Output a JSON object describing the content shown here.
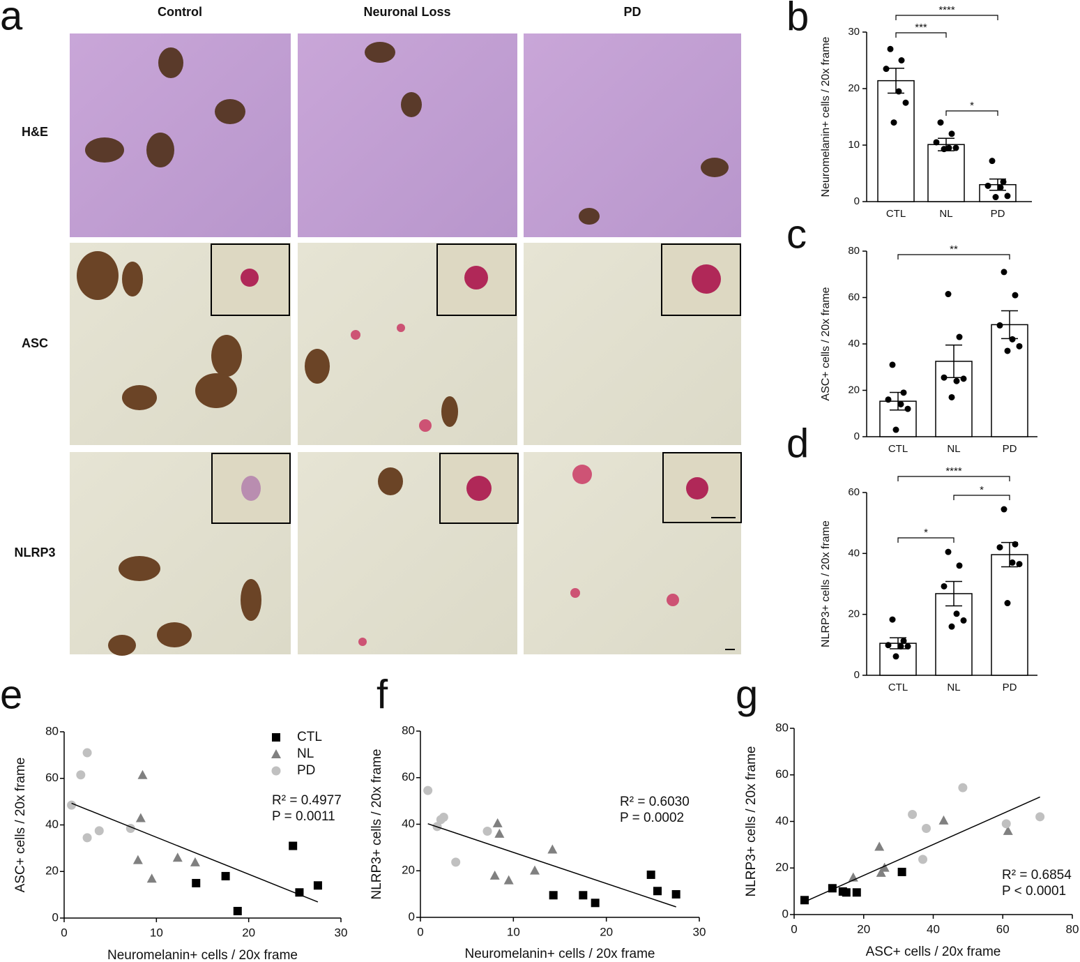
{
  "panel_a": {
    "label": "a",
    "columns": [
      "Control",
      "Neuronal Loss",
      "PD"
    ],
    "rows": [
      "H&E",
      "ASC",
      "NLRP3"
    ]
  },
  "chart_data": [
    {
      "type": "bar",
      "label": "b",
      "ylabel": "Neuromelanin+ cells / 20x frame",
      "categories": [
        "CTL",
        "NL",
        "PD"
      ],
      "values": [
        21.4,
        10.1,
        3.0
      ],
      "errors": [
        2.2,
        1.1,
        1.0
      ],
      "points": [
        [
          27,
          25,
          23.5,
          19.5,
          17.5,
          14
        ],
        [
          14,
          12,
          10.5,
          9.5,
          9.5,
          9.3
        ],
        [
          7.2,
          3.5,
          2.8,
          2.5,
          1.0,
          0.8
        ]
      ],
      "brackets": [
        {
          "from": 0,
          "to": 2,
          "label": "****"
        },
        {
          "from": 0,
          "to": 1,
          "label": "***"
        },
        {
          "from": 1,
          "to": 2,
          "label": "*"
        }
      ],
      "ylim": [
        0,
        30
      ],
      "yticks": [
        0,
        10,
        20,
        30
      ]
    },
    {
      "type": "bar",
      "label": "c",
      "ylabel": "ASC+ cells / 20x frame",
      "categories": [
        "CTL",
        "NL",
        "PD"
      ],
      "values": [
        15.3,
        32.5,
        48.3
      ],
      "errors": [
        3.8,
        7.0,
        6.0
      ],
      "points": [
        [
          31,
          19,
          16,
          14,
          12,
          3
        ],
        [
          61.5,
          43,
          25.5,
          24,
          25,
          17
        ],
        [
          71,
          61,
          48,
          42,
          39,
          37
        ]
      ],
      "brackets": [
        {
          "from": 0,
          "to": 2,
          "label": "**"
        }
      ],
      "ylim": [
        0,
        80
      ],
      "yticks": [
        0,
        20,
        40,
        60,
        80
      ]
    },
    {
      "type": "bar",
      "label": "d",
      "ylabel": "NLRP3+ cells / 20x frame",
      "categories": [
        "CTL",
        "NL",
        "PD"
      ],
      "values": [
        10.5,
        26.8,
        39.6
      ],
      "errors": [
        1.8,
        4.0,
        4.0
      ],
      "points": [
        [
          18.3,
          11.3,
          9.9,
          9.5,
          9.5,
          6.2
        ],
        [
          40.5,
          36,
          29.2,
          20.2,
          18,
          16
        ],
        [
          54.5,
          43,
          42,
          37,
          36.5,
          23.7
        ]
      ],
      "brackets": [
        {
          "from": 0,
          "to": 2,
          "label": "****"
        },
        {
          "from": 1,
          "to": 2,
          "label": "*"
        },
        {
          "from": 0,
          "to": 1,
          "label": "*"
        }
      ],
      "ylim": [
        0,
        60
      ],
      "yticks": [
        0,
        20,
        40,
        60
      ]
    },
    {
      "type": "scatter",
      "label": "e",
      "xlabel": "Neuromelanin+ cells / 20x frame",
      "ylabel": "ASC+ cells / 20x frame",
      "series": [
        {
          "name": "CTL",
          "color": "#000000",
          "marker": "square",
          "x": [
            14.3,
            17.5,
            18.8,
            24.8,
            25.5,
            27.5
          ],
          "y": [
            15,
            18,
            3,
            31,
            11,
            14
          ]
        },
        {
          "name": "NL",
          "color": "#808080",
          "marker": "triangle",
          "x": [
            8.5,
            8.3,
            8,
            9.5,
            12.3,
            14.2
          ],
          "y": [
            61.5,
            43,
            25,
            17,
            26,
            24
          ]
        },
        {
          "name": "PD",
          "color": "#c0c0c0",
          "marker": "circle",
          "x": [
            2.5,
            1.8,
            0.8,
            2.5,
            3.8,
            7.2
          ],
          "y": [
            71,
            61.5,
            48.5,
            34.5,
            37.5,
            38.5
          ]
        }
      ],
      "regression": {
        "x": [
          0.8,
          27.5
        ],
        "y": [
          49.3,
          6.9
        ]
      },
      "annotations": [
        "R² = 0.4977",
        "P = 0.0011"
      ],
      "legend": "top-right",
      "xlim": [
        0,
        30
      ],
      "xticks": [
        0,
        10,
        20,
        30
      ],
      "ylim": [
        0,
        80
      ],
      "yticks": [
        0,
        20,
        40,
        60,
        80
      ]
    },
    {
      "type": "scatter",
      "label": "f",
      "xlabel": "Neuromelanin+ cells / 20x frame",
      "ylabel": "NLRP3+ cells / 20x frame",
      "series": [
        {
          "name": "CTL",
          "color": "#000000",
          "marker": "square",
          "x": [
            14.3,
            17.5,
            18.8,
            24.8,
            25.5,
            27.5
          ],
          "y": [
            9.5,
            9.5,
            6.2,
            18.3,
            11.3,
            9.9
          ]
        },
        {
          "name": "NL",
          "color": "#808080",
          "marker": "triangle",
          "x": [
            8.3,
            8.5,
            14.2,
            12.3,
            8,
            9.5
          ],
          "y": [
            40.5,
            36,
            29.2,
            20.2,
            18,
            16
          ]
        },
        {
          "name": "PD",
          "color": "#c0c0c0",
          "marker": "circle",
          "x": [
            0.8,
            2.5,
            2.2,
            1.8,
            7.2,
            3.8
          ],
          "y": [
            54.5,
            43,
            42,
            39,
            37,
            23.7
          ]
        }
      ],
      "regression": {
        "x": [
          0.8,
          27.5
        ],
        "y": [
          40.2,
          4.5
        ]
      },
      "annotations": [
        "R² = 0.6030",
        "P = 0.0002"
      ],
      "xlim": [
        0,
        30
      ],
      "xticks": [
        0,
        10,
        20,
        30
      ],
      "ylim": [
        0,
        80
      ],
      "yticks": [
        0,
        20,
        40,
        60,
        80
      ]
    },
    {
      "type": "scatter",
      "label": "g",
      "xlabel": "ASC+ cells / 20x frame",
      "ylabel": "NLRP3+ cells / 20x frame",
      "series": [
        {
          "name": "CTL",
          "color": "#000000",
          "marker": "square",
          "x": [
            15,
            18,
            3,
            31,
            11,
            14
          ],
          "y": [
            9.5,
            9.5,
            6.2,
            18.3,
            11.3,
            9.9
          ]
        },
        {
          "name": "NL",
          "color": "#808080",
          "marker": "triangle",
          "x": [
            24.5,
            17,
            25,
            26,
            43,
            61.5
          ],
          "y": [
            29.2,
            16,
            18,
            20.2,
            40.5,
            36
          ]
        },
        {
          "name": "PD",
          "color": "#c0c0c0",
          "marker": "circle",
          "x": [
            48.5,
            34,
            70.7,
            61,
            38,
            37
          ],
          "y": [
            54.5,
            43,
            42,
            39,
            37,
            23.7
          ]
        }
      ],
      "regression": {
        "x": [
          3,
          70.7
        ],
        "y": [
          5.5,
          50.5
        ]
      },
      "annotations": [
        "R² = 0.6854",
        "P < 0.0001"
      ],
      "xlim": [
        0,
        80
      ],
      "xticks": [
        0,
        20,
        40,
        60,
        80
      ],
      "ylim": [
        0,
        80
      ],
      "yticks": [
        0,
        20,
        40,
        60,
        80
      ]
    }
  ]
}
